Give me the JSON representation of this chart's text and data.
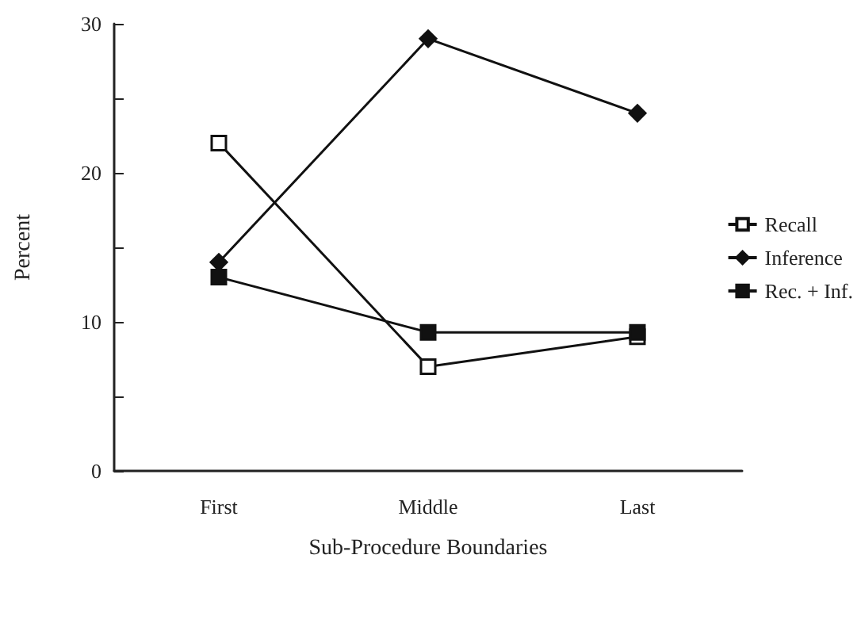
{
  "chart_data": {
    "type": "line",
    "xlabel": "Sub-Procedure Boundaries",
    "ylabel": "Percent",
    "categories": [
      "First",
      "Middle",
      "Last"
    ],
    "series": [
      {
        "name": "Recall",
        "color": "#111111",
        "values": [
          22,
          7,
          9
        ],
        "marker": "square"
      },
      {
        "name": "Inference",
        "color": "#111111",
        "values": [
          14,
          29,
          24
        ],
        "marker": "diamond"
      },
      {
        "name": "Rec. + Inf.",
        "color": "#111111",
        "values": [
          13,
          9.3,
          9.3
        ],
        "marker": "square"
      }
    ],
    "ylim": [
      0,
      30
    ],
    "yticks": [
      0,
      {
        "value": 5,
        "label": null
      },
      10,
      {
        "value": 15,
        "label": null
      },
      20,
      {
        "value": 25,
        "label": null
      },
      30
    ],
    "grid": false,
    "legend": "right",
    "line_style": "solid"
  }
}
